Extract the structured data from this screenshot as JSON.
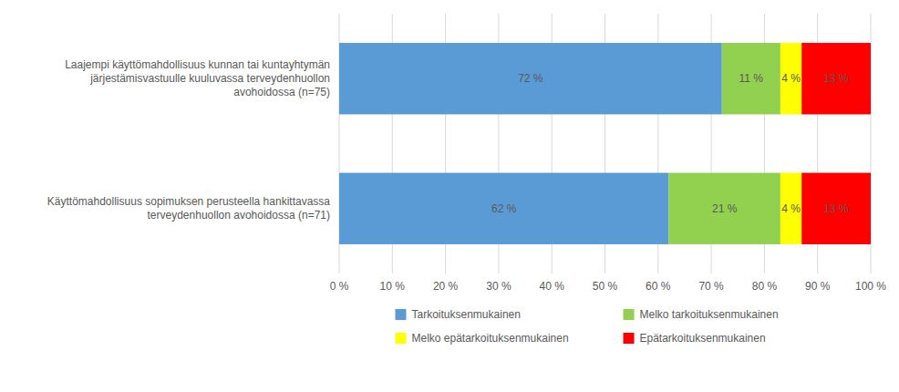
{
  "chart_data": {
    "type": "bar",
    "orientation": "horizontal",
    "stacked": true,
    "categories": [
      "Laajempi käyttömahdollisuus kunnan tai kuntayhtymän\njärjestämisvastuulle kuuluvassa terveydenhuollon\navohoidossa (n=75)",
      "Käyttömahdollisuus sopimuksen perusteella hankittavassa\nterveydenhuollon avohoidossa (n=71)"
    ],
    "series": [
      {
        "name": "Tarkoituksenmukainen",
        "color": "#5B9BD5",
        "values": [
          72,
          62
        ],
        "value_labels": [
          "72 %",
          "62 %"
        ]
      },
      {
        "name": "Melko tarkoituksenmukainen",
        "color": "#92D050",
        "values": [
          11,
          21
        ],
        "value_labels": [
          "11 %",
          "21 %"
        ]
      },
      {
        "name": "Melko epätarkoituksenmukainen",
        "color": "#FFFF00",
        "values": [
          4,
          4
        ],
        "value_labels": [
          "4 %",
          "4 %"
        ]
      },
      {
        "name": "Epätarkoituksenmukainen",
        "color": "#FF0000",
        "values": [
          13,
          13
        ],
        "value_labels": [
          "13 %",
          "13 %"
        ]
      }
    ],
    "xlim": [
      0,
      100
    ],
    "xticks": [
      {
        "value": 0,
        "label": "0 %"
      },
      {
        "value": 10,
        "label": "10 %"
      },
      {
        "value": 20,
        "label": "20 %"
      },
      {
        "value": 30,
        "label": "30 %"
      },
      {
        "value": 40,
        "label": "40 %"
      },
      {
        "value": 50,
        "label": "50 %"
      },
      {
        "value": 60,
        "label": "60 %"
      },
      {
        "value": 70,
        "label": "70 %"
      },
      {
        "value": 80,
        "label": "80 %"
      },
      {
        "value": 90,
        "label": "90 %"
      },
      {
        "value": 100,
        "label": "100 %"
      }
    ],
    "grid": true,
    "data_labels": true,
    "legend": "bottom"
  }
}
